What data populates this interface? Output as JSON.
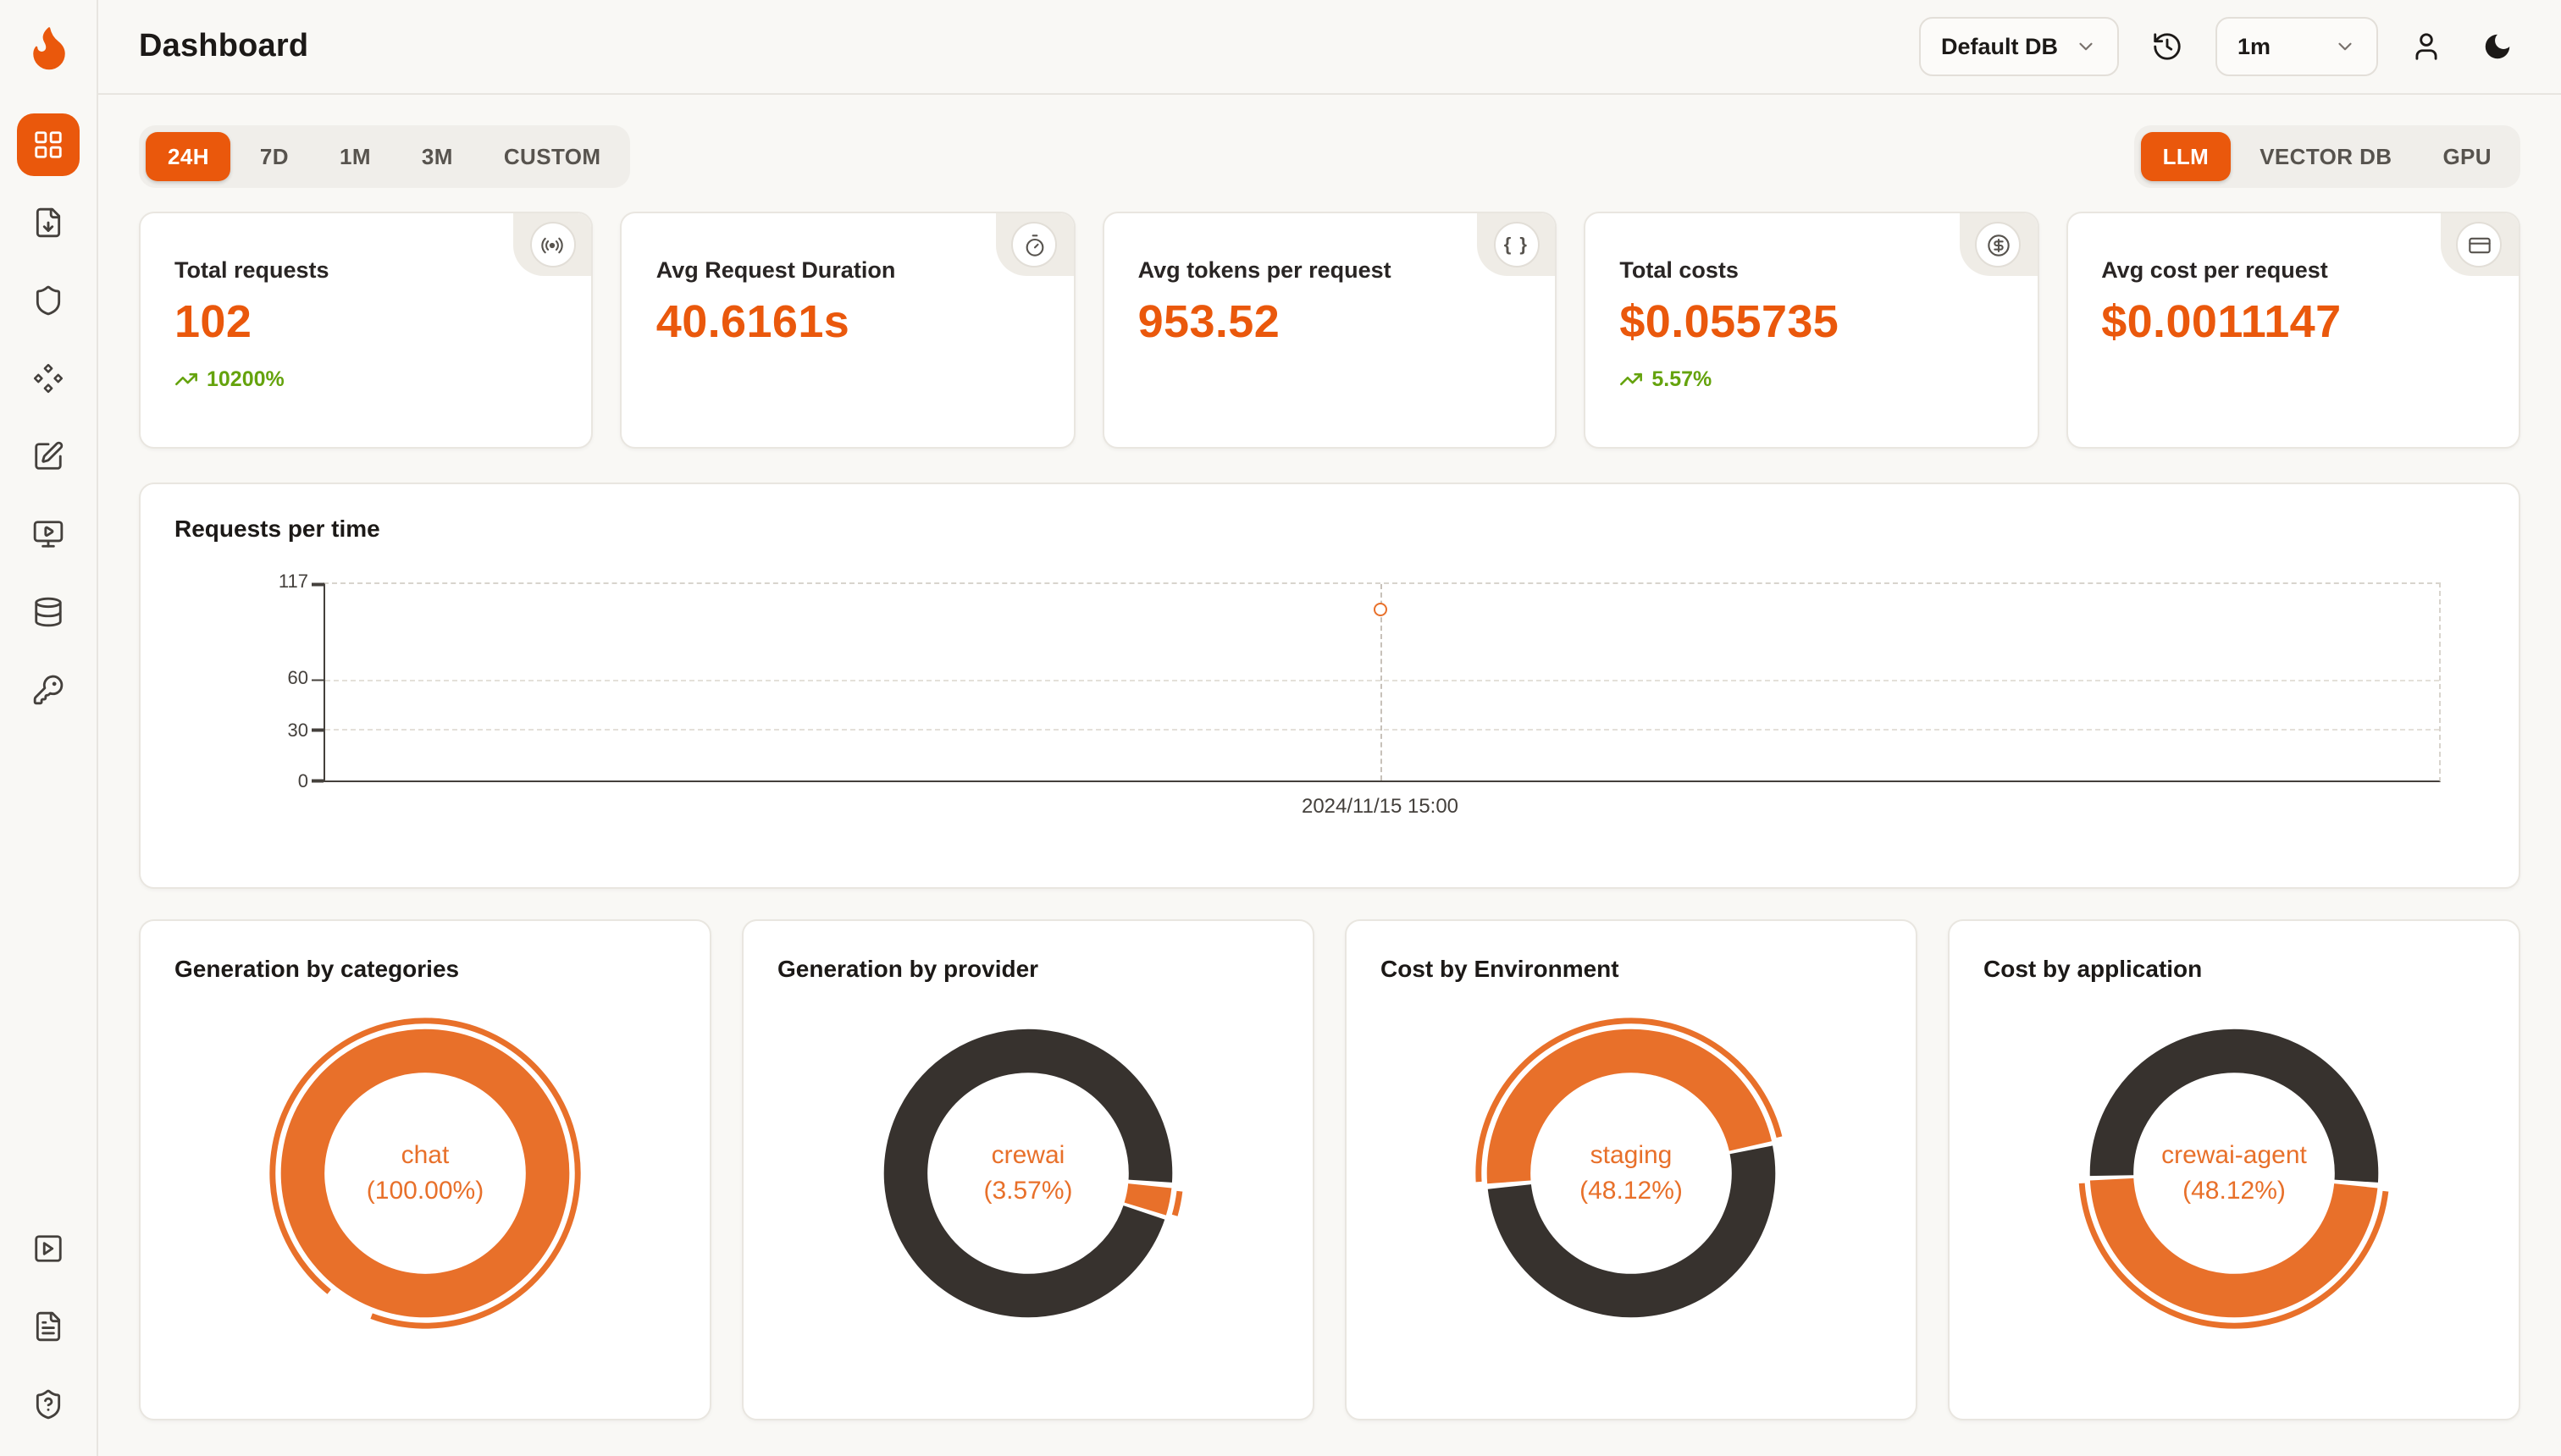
{
  "theme": {
    "accent": "#EA580C",
    "donut_orange": "#E8702A",
    "donut_dark": "#37322E",
    "green": "#65A30D",
    "page_bg": "#F9F8F5"
  },
  "icon_glyphs": {
    "braces": "{ }"
  },
  "header": {
    "title": "Dashboard",
    "db_select": "Default DB",
    "interval_select": "1m"
  },
  "sidebar": {
    "items": [
      "dashboard-grid-icon",
      "requests-file-icon",
      "exceptions-shield-icon",
      "prompt-hub-diamonds-icon",
      "vault-pen-icon",
      "playground-monitor-icon",
      "databases-icon",
      "api-keys-icon"
    ],
    "bottom_items": [
      "getting-started-play-icon",
      "documentation-file-icon",
      "support-help-icon"
    ]
  },
  "filters": {
    "time_ranges": [
      "24H",
      "7D",
      "1M",
      "3M",
      "CUSTOM"
    ],
    "active_time_range": "24H",
    "sources": [
      "LLM",
      "VECTOR DB",
      "GPU"
    ],
    "active_source": "LLM"
  },
  "stats": [
    {
      "label": "Total requests",
      "value": "102",
      "delta": "10200%",
      "icon": "radar-icon"
    },
    {
      "label": "Avg Request Duration",
      "value": "40.6161s",
      "icon": "timer-icon"
    },
    {
      "label": "Avg tokens per request",
      "value": "953.52",
      "icon": "braces-icon"
    },
    {
      "label": "Total costs",
      "value": "$0.055735",
      "delta": "5.57%",
      "icon": "dollar-icon"
    },
    {
      "label": "Avg cost per request",
      "value": "$0.0011147",
      "icon": "card-icon"
    }
  ],
  "chart_data": [
    {
      "type": "line",
      "title": "Requests per time",
      "ylim": [
        0,
        117
      ],
      "yticks": [
        117,
        60,
        30,
        0
      ],
      "x_labels": [
        "2024/11/15 15:00"
      ],
      "series": [
        {
          "name": "Requests",
          "points": [
            {
              "x": "2024/11/15 15:00",
              "y": 102
            }
          ]
        }
      ],
      "point": {
        "x_frac": 0.499,
        "value": 102
      },
      "grid": "dashed",
      "legend": "none"
    },
    {
      "type": "pie",
      "title": "Generation by categories",
      "center_label": "chat",
      "center_pct": "(100.00%)",
      "slices": [
        {
          "name": "chat",
          "value": 100,
          "color": "orange"
        }
      ],
      "start_deg": 210
    },
    {
      "type": "pie",
      "title": "Generation by provider",
      "center_label": "crewai",
      "center_pct": "(3.57%)",
      "slices": [
        {
          "name": "crewai",
          "value": 3.57,
          "color": "orange"
        },
        {
          "name": "other",
          "value": 96.43,
          "color": "dark"
        }
      ],
      "start_deg": 95
    },
    {
      "type": "pie",
      "title": "Cost by Environment",
      "center_label": "staging",
      "center_pct": "(48.12%)",
      "slices": [
        {
          "name": "staging",
          "value": 48.12,
          "color": "orange"
        },
        {
          "name": "other",
          "value": 51.88,
          "color": "dark"
        }
      ],
      "start_deg": 265
    },
    {
      "type": "pie",
      "title": "Cost by application",
      "center_label": "crewai-agent",
      "center_pct": "(48.12%)",
      "slices": [
        {
          "name": "crewai-agent",
          "value": 48.12,
          "color": "orange"
        },
        {
          "name": "other",
          "value": 51.88,
          "color": "dark"
        }
      ],
      "start_deg": 95
    }
  ]
}
